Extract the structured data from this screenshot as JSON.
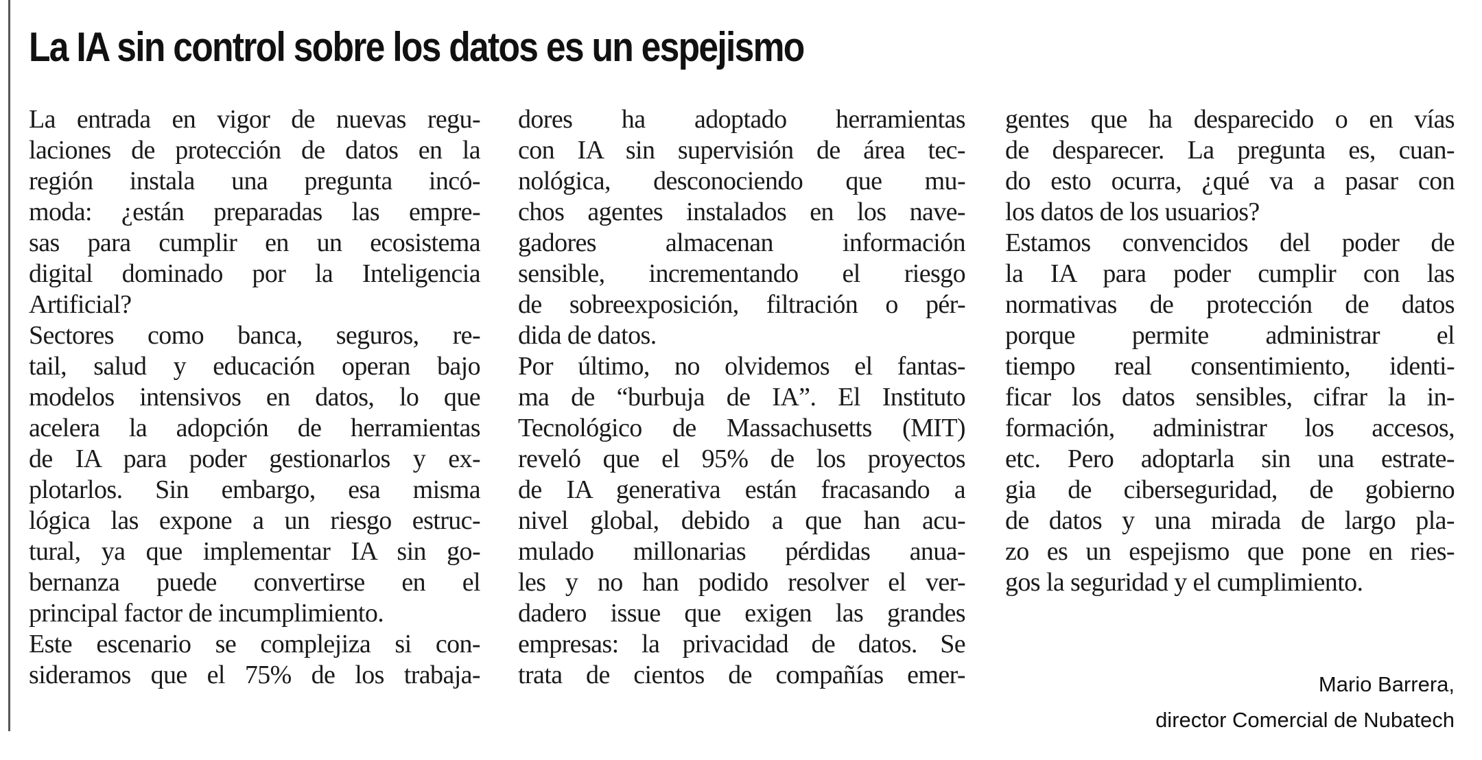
{
  "article": {
    "title": "La IA sin control sobre los datos es un espejismo",
    "columns": [
      {
        "lines": [
          {
            "t": "La entrada en vigor de nuevas regu-"
          },
          {
            "t": "laciones de protección de datos en la"
          },
          {
            "t": "región instala una pregunta incó-"
          },
          {
            "t": "moda: ¿están preparadas las empre-"
          },
          {
            "t": "sas para cumplir en un ecosistema"
          },
          {
            "t": "digital dominado por la Inteligencia"
          },
          {
            "t": "Artificial?",
            "end": true
          },
          {
            "t": "Sectores como banca, seguros, re-"
          },
          {
            "t": "tail, salud y educación operan bajo"
          },
          {
            "t": "modelos intensivos en datos, lo que"
          },
          {
            "t": "acelera la adopción de herramientas"
          },
          {
            "t": "de IA para poder gestionarlos y ex-"
          },
          {
            "t": "plotarlos. Sin embargo, esa misma"
          },
          {
            "t": "lógica las expone a un riesgo estruc-"
          },
          {
            "t": "tural, ya que implementar IA sin go-"
          },
          {
            "t": "bernanza puede convertirse en el"
          },
          {
            "t": "principal factor de incumplimiento.",
            "end": true
          },
          {
            "t": "Este escenario se complejiza si con-"
          },
          {
            "t": "sideramos que el 75% de los trabaja-"
          }
        ]
      },
      {
        "lines": [
          {
            "t": "dores ha adoptado herramientas"
          },
          {
            "t": "con IA sin supervisión de área tec-"
          },
          {
            "t": "nológica, desconociendo que mu-"
          },
          {
            "t": "chos agentes instalados en los nave-"
          },
          {
            "t": "gadores almacenan información"
          },
          {
            "t": "sensible, incrementando el riesgo"
          },
          {
            "t": "de sobreexposición, filtración o pér-"
          },
          {
            "t": "dida de datos.",
            "end": true
          },
          {
            "t": "Por último, no olvidemos el fantas-"
          },
          {
            "t": "ma de “burbuja de IA”. El Instituto"
          },
          {
            "t": "Tecnológico de Massachusetts (MIT)"
          },
          {
            "t": "reveló que el 95% de los proyectos"
          },
          {
            "t": "de IA generativa están fracasando a"
          },
          {
            "t": "nivel global, debido a que han acu-"
          },
          {
            "t": "mulado millonarias pérdidas anua-"
          },
          {
            "t": "les y no han podido resolver el ver-"
          },
          {
            "t": "dadero issue que exigen las grandes"
          },
          {
            "t": "empresas: la privacidad de datos.  Se"
          },
          {
            "t": "trata de cientos de compañías emer-"
          }
        ]
      },
      {
        "lines": [
          {
            "t": "gentes que ha desparecido o en vías"
          },
          {
            "t": "de desparecer. La pregunta es, cuan-"
          },
          {
            "t": "do esto ocurra, ¿qué va a pasar con"
          },
          {
            "t": "los datos de los usuarios?",
            "end": true
          },
          {
            "t": "Estamos convencidos del poder de"
          },
          {
            "t": "la IA para poder cumplir con las"
          },
          {
            "t": "normativas de protección de datos"
          },
          {
            "t": "porque permite administrar el"
          },
          {
            "t": "tiempo real consentimiento, identi-"
          },
          {
            "t": "ficar los datos sensibles, cifrar la in-"
          },
          {
            "t": "formación, administrar los accesos,"
          },
          {
            "t": "etc. Pero adoptarla sin una estrate-"
          },
          {
            "t": "gia de ciberseguridad, de gobierno"
          },
          {
            "t": "de datos y una mirada de largo pla-"
          },
          {
            "t": "zo es un espejismo que pone en ries-"
          },
          {
            "t": "gos la seguridad y el cumplimiento.",
            "end": true
          }
        ]
      }
    ],
    "author": {
      "name": "Mario Barrera,",
      "role": "director Comercial de Nubatech"
    }
  }
}
